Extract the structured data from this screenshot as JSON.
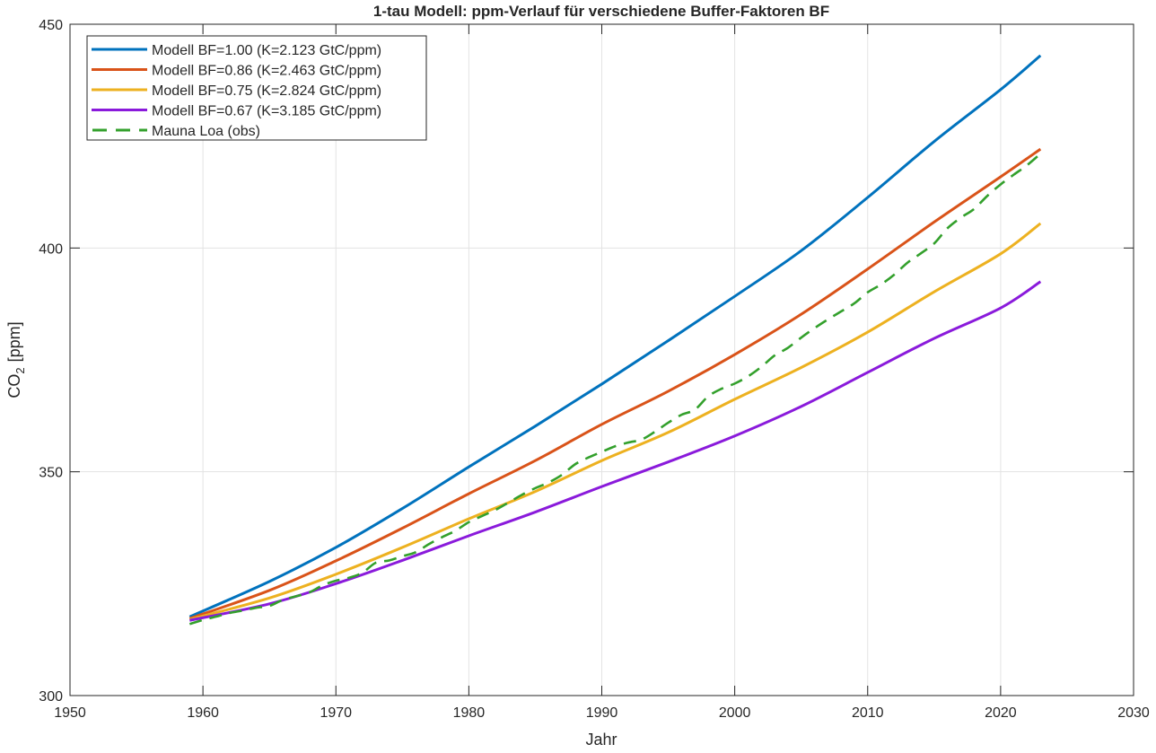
{
  "chart_data": {
    "type": "line",
    "title": "1-tau Modell: ppm-Verlauf für verschiedene Buffer-Faktoren BF",
    "xlabel": "Jahr",
    "ylabel_main": "CO",
    "ylabel_sub": "2",
    "ylabel_unit": "[ppm]",
    "xlim": [
      1950,
      2030
    ],
    "ylim": [
      300,
      450
    ],
    "xticks": [
      1950,
      1960,
      1970,
      1980,
      1990,
      2000,
      2010,
      2020,
      2030
    ],
    "yticks": [
      300,
      350,
      400,
      450
    ],
    "grid": true,
    "legend_position": "top-left",
    "model_x": [
      1959,
      1965,
      1970,
      1975,
      1980,
      1985,
      1990,
      1995,
      2000,
      2005,
      2010,
      2015,
      2020,
      2023
    ],
    "series": [
      {
        "name": "Modell BF=1.00 (K=2.123 GtC/ppm)",
        "color": "#0072BD",
        "style": "solid",
        "values": [
          317.6,
          325.5,
          333.1,
          341.8,
          351.1,
          360.2,
          369.6,
          379.3,
          389.2,
          399.4,
          411.3,
          423.8,
          435.4,
          443.0
        ]
      },
      {
        "name": "Modell BF=0.86 (K=2.463 GtC/ppm)",
        "color": "#D95319",
        "style": "solid",
        "values": [
          317.2,
          323.5,
          330.1,
          337.4,
          345.1,
          352.5,
          360.6,
          368.0,
          376.2,
          385.2,
          395.3,
          405.8,
          415.9,
          422.1
        ]
      },
      {
        "name": "Modell BF=0.75 (K=2.824 GtC/ppm)",
        "color": "#EDB120",
        "style": "solid",
        "values": [
          317.0,
          321.8,
          327.1,
          333.1,
          339.5,
          345.6,
          352.5,
          358.8,
          366.2,
          373.3,
          381.2,
          390.2,
          398.7,
          405.5
        ]
      },
      {
        "name": "Modell BF=0.67 (K=3.185 GtC/ppm)",
        "color": "#8A1ADB",
        "style": "solid",
        "values": [
          316.8,
          320.5,
          325.0,
          330.2,
          335.7,
          341.0,
          346.7,
          352.2,
          358.0,
          364.6,
          372.2,
          379.8,
          386.6,
          392.5
        ]
      },
      {
        "name": "Mauna Loa (obs)",
        "color": "#33A02C",
        "style": "dashed",
        "x_start": 1959,
        "values": [
          315.98,
          316.91,
          317.64,
          318.45,
          318.99,
          319.62,
          320.04,
          321.37,
          322.18,
          323.05,
          324.62,
          325.68,
          326.32,
          327.46,
          329.68,
          330.19,
          331.12,
          332.03,
          333.84,
          335.41,
          336.84,
          338.76,
          340.12,
          341.48,
          343.15,
          344.87,
          346.35,
          347.61,
          349.31,
          351.69,
          353.2,
          354.45,
          355.7,
          356.54,
          357.21,
          358.96,
          360.97,
          362.74,
          363.88,
          366.84,
          368.54,
          369.71,
          371.32,
          373.45,
          375.98,
          377.7,
          379.98,
          382.09,
          384.02,
          385.83,
          387.64,
          390.1,
          391.85,
          394.06,
          396.74,
          398.81,
          401.01,
          404.41,
          406.76,
          408.72,
          411.65,
          414.21,
          416.41,
          418.53,
          421.08
        ]
      }
    ]
  }
}
